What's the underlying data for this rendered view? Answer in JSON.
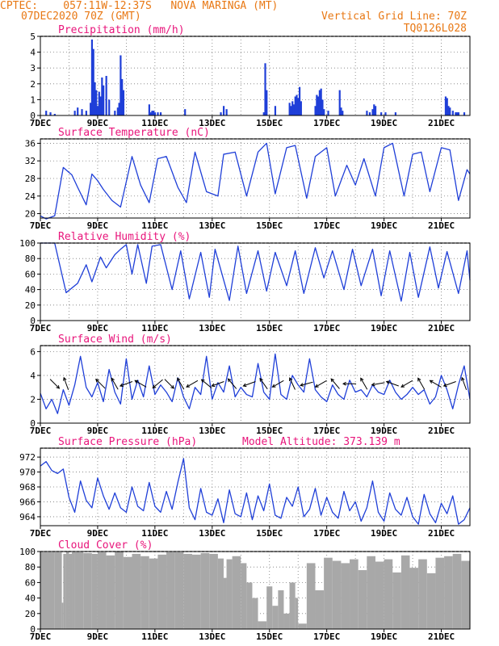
{
  "header": {
    "line1_left": "CPTEC:    057:11W-12:37S   NOVA MARINGA (MT)",
    "line2_left": "07DEC2020 70Z (GMT)",
    "line1_right": "Vertical Grid Line: 70Z",
    "line2_right": "TQ0126L028"
  },
  "colors": {
    "header": "#e87814",
    "title": "#e8157b",
    "line": "#1f3fd8",
    "cloud": "#a8a8a8",
    "grid": "#7a7a7a"
  },
  "x_tick_labels": [
    "7DEC",
    "9DEC",
    "11DEC",
    "13DEC",
    "15DEC",
    "17DEC",
    "19DEC",
    "21DEC"
  ],
  "chart_data": [
    {
      "id": "precip",
      "type": "bar",
      "title": "Precipitation (mm/h)",
      "ylim": [
        0,
        5
      ],
      "yticks": [
        0,
        1,
        2,
        3,
        4,
        5
      ],
      "x_units": "days since 7DEC 00Z",
      "x": [
        0.2,
        0.35,
        0.5,
        1.2,
        1.3,
        1.45,
        1.6,
        1.75,
        1.8,
        1.85,
        1.9,
        1.95,
        2.0,
        2.05,
        2.1,
        2.15,
        2.2,
        2.3,
        2.4,
        2.6,
        2.7,
        2.75,
        2.8,
        2.85,
        2.9,
        3.8,
        3.85,
        3.9,
        3.95,
        4.0,
        4.1,
        4.2,
        5.05,
        6.3,
        6.4,
        6.5,
        7.8,
        7.85,
        7.9,
        8.2,
        8.7,
        8.75,
        8.8,
        8.85,
        8.9,
        8.95,
        9.0,
        9.05,
        9.1,
        9.6,
        9.65,
        9.7,
        9.75,
        9.8,
        9.85,
        9.9,
        10.05,
        10.45,
        10.5,
        10.55,
        11.4,
        11.5,
        11.6,
        11.65,
        11.7,
        11.9,
        12.05,
        12.4,
        14.15,
        14.2,
        14.25,
        14.3,
        14.4,
        14.5,
        14.55,
        14.6,
        14.8
      ],
      "values": [
        0.3,
        0.2,
        0.1,
        0.3,
        0.5,
        0.4,
        0.3,
        0.8,
        4.8,
        4.2,
        2.1,
        1.6,
        0.6,
        1.5,
        1.2,
        2.4,
        1.9,
        2.5,
        1.0,
        0.3,
        0.5,
        0.8,
        3.8,
        2.3,
        1.6,
        0.7,
        0.2,
        0.3,
        0.3,
        0.2,
        0.2,
        0.2,
        0.4,
        0.2,
        0.6,
        0.4,
        0.2,
        3.3,
        1.6,
        0.6,
        0.8,
        0.6,
        0.9,
        0.7,
        1.2,
        1.3,
        1.1,
        1.8,
        0.9,
        0.6,
        1.3,
        1.2,
        1.6,
        1.7,
        1.0,
        0.4,
        0.3,
        1.6,
        0.5,
        0.3,
        0.3,
        0.2,
        0.4,
        0.7,
        0.6,
        0.2,
        0.2,
        0.2,
        1.2,
        1.1,
        0.6,
        0.5,
        0.3,
        0.2,
        0.2,
        0.2,
        0.2
      ]
    },
    {
      "id": "temp",
      "type": "line",
      "title": "Surface Temperature (nC)",
      "ylim": [
        19,
        37
      ],
      "yticks": [
        20,
        24,
        28,
        32,
        36
      ],
      "x_units": "days since 7DEC 00Z",
      "x": [
        0.0,
        0.2,
        0.5,
        0.8,
        1.1,
        1.3,
        1.6,
        1.8,
        2.0,
        2.2,
        2.5,
        2.8,
        3.2,
        3.5,
        3.8,
        4.1,
        4.4,
        4.8,
        5.1,
        5.4,
        5.8,
        6.2,
        6.4,
        6.8,
        7.2,
        7.6,
        7.9,
        8.2,
        8.6,
        8.9,
        9.3,
        9.6,
        10.0,
        10.3,
        10.7,
        11.0,
        11.3,
        11.7,
        12.0,
        12.3,
        12.7,
        13.0,
        13.3,
        13.6,
        14.0,
        14.3,
        14.6,
        14.9,
        15.0
      ],
      "values": [
        19.5,
        18.8,
        19.5,
        30.5,
        28.8,
        26.0,
        22.0,
        29.0,
        27.5,
        25.5,
        23.0,
        21.5,
        33.0,
        26.5,
        22.5,
        32.5,
        33.0,
        26.0,
        22.5,
        34.0,
        25.0,
        24.0,
        33.5,
        34.0,
        24.0,
        34.0,
        36.0,
        24.5,
        35.0,
        35.5,
        23.5,
        33.0,
        35.0,
        24.0,
        31.0,
        26.5,
        32.5,
        24.0,
        35.0,
        36.0,
        24.0,
        33.5,
        34.0,
        25.0,
        35.0,
        34.5,
        23.0,
        30.0,
        29.0
      ]
    },
    {
      "id": "rh",
      "type": "line",
      "title": "Relative Humidity (%)",
      "ylim": [
        0,
        100
      ],
      "yticks": [
        0,
        20,
        40,
        60,
        80,
        100
      ],
      "x_units": "days since 7DEC 00Z",
      "x": [
        0.0,
        0.5,
        0.9,
        1.3,
        1.6,
        1.8,
        2.1,
        2.3,
        2.6,
        2.8,
        3.0,
        3.2,
        3.4,
        3.7,
        3.9,
        4.2,
        4.6,
        4.9,
        5.2,
        5.6,
        5.9,
        6.1,
        6.6,
        6.9,
        7.2,
        7.6,
        7.9,
        8.2,
        8.6,
        8.9,
        9.2,
        9.6,
        9.9,
        10.2,
        10.6,
        10.9,
        11.2,
        11.6,
        11.9,
        12.2,
        12.6,
        12.9,
        13.2,
        13.6,
        13.9,
        14.2,
        14.6,
        14.9,
        15.0
      ],
      "values": [
        100,
        100,
        36,
        48,
        72,
        50,
        82,
        68,
        85,
        92,
        98,
        60,
        98,
        48,
        96,
        98,
        40,
        90,
        28,
        88,
        30,
        92,
        26,
        96,
        35,
        90,
        38,
        88,
        45,
        90,
        35,
        94,
        55,
        90,
        40,
        92,
        45,
        92,
        32,
        90,
        25,
        88,
        30,
        95,
        42,
        89,
        35,
        90,
        52
      ]
    },
    {
      "id": "wind",
      "type": "line",
      "title": "Surface Wind (m/s)",
      "ylim": [
        0,
        6.5
      ],
      "yticks": [
        0,
        2,
        4,
        6
      ],
      "x_units": "days since 7DEC 00Z",
      "x": [
        0.0,
        0.2,
        0.4,
        0.6,
        0.8,
        1.0,
        1.2,
        1.4,
        1.6,
        1.8,
        2.0,
        2.2,
        2.4,
        2.6,
        2.8,
        3.0,
        3.2,
        3.4,
        3.6,
        3.8,
        4.0,
        4.2,
        4.4,
        4.6,
        4.8,
        5.0,
        5.2,
        5.4,
        5.6,
        5.8,
        6.0,
        6.2,
        6.4,
        6.6,
        6.8,
        7.0,
        7.2,
        7.4,
        7.6,
        7.8,
        8.0,
        8.2,
        8.4,
        8.6,
        8.8,
        9.0,
        9.2,
        9.4,
        9.6,
        9.8,
        10.0,
        10.2,
        10.4,
        10.6,
        10.8,
        11.0,
        11.2,
        11.4,
        11.6,
        11.8,
        12.0,
        12.2,
        12.4,
        12.6,
        12.8,
        13.0,
        13.2,
        13.4,
        13.6,
        13.8,
        14.0,
        14.2,
        14.4,
        14.6,
        14.8,
        15.0
      ],
      "values": [
        2.5,
        1.2,
        2.0,
        0.8,
        2.8,
        1.5,
        3.2,
        5.6,
        3.0,
        2.2,
        3.4,
        1.8,
        4.5,
        2.6,
        1.6,
        5.4,
        2.0,
        3.6,
        2.2,
        4.8,
        2.4,
        3.2,
        2.6,
        1.8,
        3.8,
        2.2,
        1.2,
        3.0,
        2.4,
        5.6,
        2.0,
        3.4,
        2.6,
        4.8,
        2.2,
        3.0,
        2.4,
        2.2,
        5.0,
        2.6,
        2.0,
        5.8,
        2.4,
        2.0,
        4.0,
        3.2,
        2.6,
        5.4,
        2.8,
        2.2,
        1.8,
        3.2,
        2.4,
        2.0,
        3.6,
        2.6,
        2.8,
        2.2,
        3.2,
        2.6,
        2.4,
        3.6,
        2.6,
        2.0,
        2.4,
        3.0,
        2.4,
        2.8,
        1.6,
        2.2,
        4.0,
        2.8,
        1.2,
        3.2,
        4.8,
        2.0
      ],
      "arrows": {
        "x": [
          0.5,
          0.9,
          2.1,
          2.6,
          3.0,
          3.5,
          4.1,
          4.5,
          4.9,
          5.3,
          5.8,
          6.2,
          6.7,
          7.3,
          7.8,
          8.3,
          8.8,
          9.3,
          9.8,
          10.3,
          10.8,
          11.3,
          11.8,
          12.3,
          12.8,
          13.3,
          13.8,
          14.3,
          14.8
        ],
        "angle_deg": [
          315,
          110,
          135,
          120,
          200,
          150,
          220,
          315,
          120,
          210,
          140,
          200,
          130,
          200,
          125,
          210,
          115,
          195,
          210,
          130,
          180,
          120,
          190,
          160,
          210,
          120,
          150,
          200,
          110
        ]
      }
    },
    {
      "id": "pres",
      "type": "line",
      "title": "Surface Pressure (hPa)",
      "annotation": "Model Altitude: 373.139  m",
      "ylim": [
        962.8,
        973.2
      ],
      "yticks": [
        964,
        966,
        968,
        970,
        972
      ],
      "x_units": "days since 7DEC 00Z",
      "x": [
        0.0,
        0.2,
        0.4,
        0.6,
        0.8,
        1.0,
        1.2,
        1.4,
        1.6,
        1.8,
        2.0,
        2.2,
        2.4,
        2.6,
        2.8,
        3.0,
        3.2,
        3.4,
        3.6,
        3.8,
        4.0,
        4.2,
        4.4,
        4.6,
        4.8,
        5.0,
        5.2,
        5.4,
        5.6,
        5.8,
        6.0,
        6.2,
        6.4,
        6.6,
        6.8,
        7.0,
        7.2,
        7.4,
        7.6,
        7.8,
        8.0,
        8.2,
        8.4,
        8.6,
        8.8,
        9.0,
        9.2,
        9.4,
        9.6,
        9.8,
        10.0,
        10.2,
        10.4,
        10.6,
        10.8,
        11.0,
        11.2,
        11.4,
        11.6,
        11.8,
        12.0,
        12.2,
        12.4,
        12.6,
        12.8,
        13.0,
        13.2,
        13.4,
        13.6,
        13.8,
        14.0,
        14.2,
        14.4,
        14.6,
        14.8,
        15.0
      ],
      "values": [
        970.8,
        971.4,
        970.2,
        969.8,
        970.4,
        966.6,
        964.6,
        968.8,
        966.2,
        965.2,
        969.2,
        966.8,
        965.0,
        967.2,
        965.2,
        964.6,
        968.0,
        965.4,
        964.8,
        968.6,
        965.4,
        964.6,
        967.4,
        965.0,
        968.6,
        971.8,
        965.2,
        963.6,
        967.8,
        964.6,
        964.2,
        966.4,
        963.2,
        967.6,
        964.4,
        964.0,
        967.2,
        963.6,
        966.8,
        964.8,
        968.4,
        964.2,
        963.8,
        966.6,
        965.4,
        968.0,
        964.0,
        965.0,
        967.8,
        964.2,
        966.6,
        964.6,
        963.8,
        967.4,
        964.8,
        966.0,
        963.4,
        965.2,
        968.8,
        964.6,
        963.4,
        967.2,
        965.0,
        964.2,
        966.6,
        964.0,
        963.0,
        967.0,
        964.4,
        963.2,
        965.8,
        964.4,
        966.8,
        963.0,
        963.6,
        965.2
      ]
    },
    {
      "id": "cloud",
      "type": "area",
      "title": "Cloud Cover (%)",
      "ylim": [
        0,
        100
      ],
      "yticks": [
        0,
        20,
        40,
        60,
        80,
        100
      ],
      "x_units": "days since 7DEC 00Z",
      "x": [
        0.0,
        0.5,
        0.75,
        0.8,
        0.9,
        1.0,
        1.1,
        1.2,
        1.5,
        1.8,
        2.0,
        2.3,
        2.6,
        2.9,
        3.2,
        3.5,
        3.8,
        4.1,
        4.4,
        4.7,
        5.0,
        5.3,
        5.6,
        5.9,
        6.2,
        6.4,
        6.5,
        6.7,
        7.0,
        7.2,
        7.4,
        7.6,
        7.9,
        8.1,
        8.3,
        8.5,
        8.7,
        8.9,
        9.0,
        9.3,
        9.6,
        9.9,
        10.2,
        10.5,
        10.8,
        11.1,
        11.4,
        11.7,
        12.0,
        12.3,
        12.6,
        12.9,
        13.2,
        13.5,
        13.8,
        14.1,
        14.4,
        14.7,
        15.0
      ],
      "values": [
        99,
        99,
        34,
        97,
        100,
        97,
        99,
        99,
        98,
        97,
        99,
        95,
        100,
        93,
        97,
        94,
        91,
        96,
        99,
        99,
        97,
        96,
        98,
        97,
        91,
        66,
        90,
        94,
        85,
        60,
        40,
        10,
        55,
        30,
        50,
        20,
        60,
        40,
        7,
        85,
        50,
        92,
        88,
        85,
        90,
        76,
        94,
        87,
        90,
        73,
        95,
        79,
        90,
        72,
        92,
        94,
        97,
        88,
        93
      ]
    }
  ]
}
